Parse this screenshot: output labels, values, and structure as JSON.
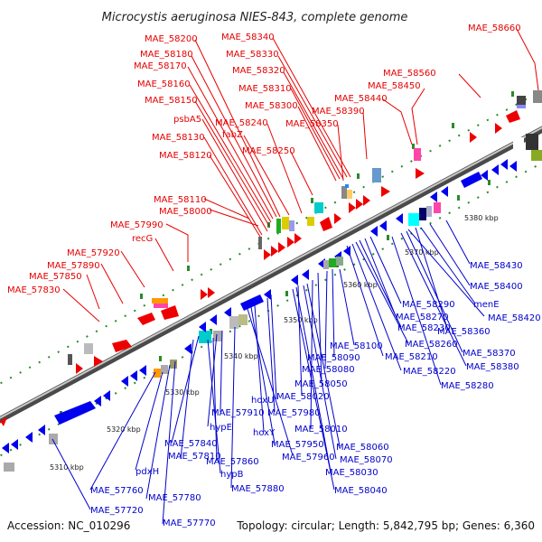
{
  "title": "Microcystis aeruginosa NIES-843, complete genome",
  "footer": {
    "accession": "Accession: NC_010296",
    "topology": "Topology: circular; Length: 5,842,795 bp; Genes: 6,360"
  },
  "colors": {
    "forward_label": "#e60000",
    "reverse_label": "#0000cc",
    "forward_feature": "#ff0000",
    "reverse_feature": "#0000ee",
    "axis": "#888888",
    "tick": "#228b22"
  },
  "kbp_ticks": [
    "5310 kbp",
    "5320 kbp",
    "5330 kbp",
    "5340 kbp",
    "5350 kbp",
    "5360 kbp",
    "5370 kbp",
    "5380 kbp"
  ],
  "top_labels": [
    "MAE_58660",
    "MAE_58560",
    "MAE_58450",
    "MAE_58440",
    "MAE_58390",
    "MAE_58350",
    "MAE_58340",
    "MAE_58330",
    "MAE_58320",
    "MAE_58310",
    "MAE_58300",
    "MAE_58250",
    "MAE_58240",
    "fabZ",
    "MAE_58200",
    "MAE_58180",
    "MAE_58170",
    "MAE_58160",
    "MAE_58150",
    "psbA5",
    "MAE_58130",
    "MAE_58120",
    "MAE_58110",
    "MAE_58000",
    "MAE_57990",
    "recG",
    "MAE_57920",
    "MAE_57890",
    "MAE_57850",
    "MAE_57830"
  ],
  "bottom_labels": [
    "MAE_58430",
    "MAE_58400",
    "menE",
    "MAE_58420",
    "MAE_58360",
    "MAE_58370",
    "MAE_58380",
    "MAE_58290",
    "MAE_58270",
    "MAE_58230",
    "MAE_58260",
    "MAE_58280",
    "MAE_58220",
    "MAE_58210",
    "MAE_58100",
    "MAE_58090",
    "MAE_58080",
    "MAE_58050",
    "MAE_58020",
    "hoxU",
    "MAE_57980",
    "MAE_58010",
    "hoxY",
    "MAE_57950",
    "MAE_57960",
    "MAE_58060",
    "MAE_58070",
    "MAE_58030",
    "MAE_58040",
    "MAE_57910",
    "hypE",
    "MAE_57840",
    "MAE_57810",
    "MAE_57860",
    "hypB",
    "MAE_57880",
    "pdxH",
    "MAE_57760",
    "MAE_57780",
    "MAE_57720",
    "MAE_57770"
  ]
}
